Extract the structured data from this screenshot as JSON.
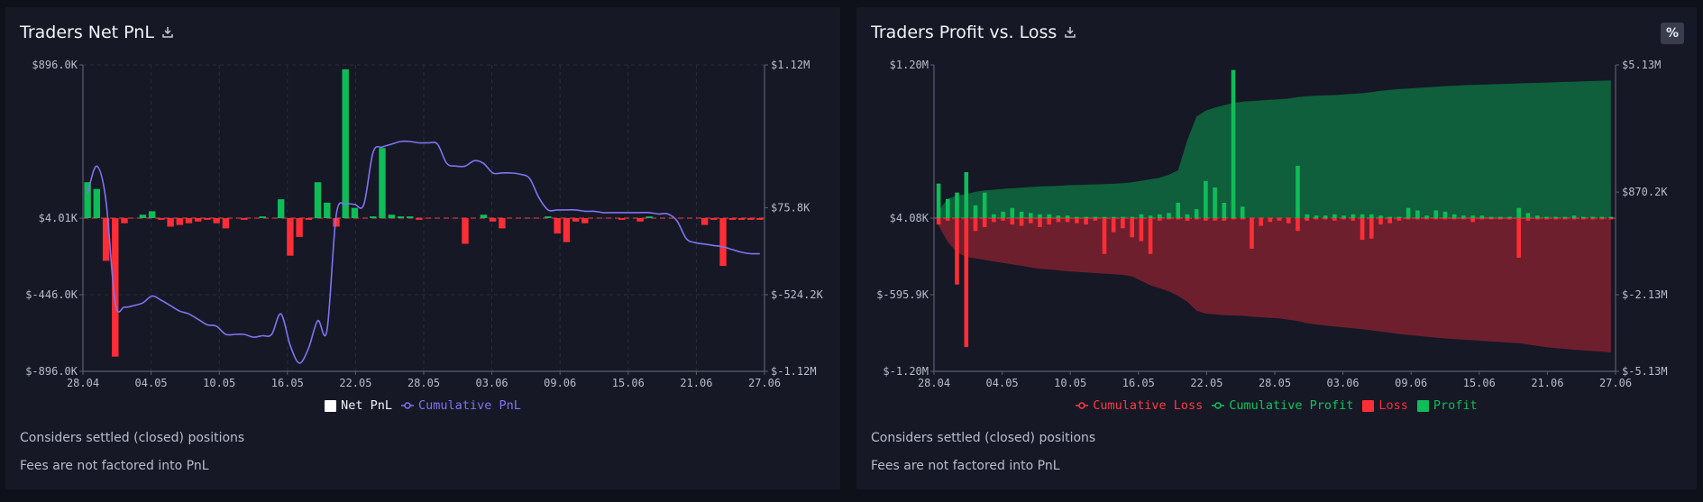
{
  "left": {
    "title": "Traders Net PnL",
    "legend": [
      {
        "label": "Net PnL",
        "color": "#ffffff",
        "kind": "square"
      },
      {
        "label": "Cumulative PnL",
        "color": "#7f74f0",
        "kind": "line"
      }
    ],
    "notes": [
      "Considers settled (closed) positions",
      "Fees are not factored into PnL"
    ]
  },
  "right": {
    "title": "Traders Profit vs. Loss",
    "percent_button": "%",
    "legend": [
      {
        "label": "Cumulative Loss",
        "color": "#ff3b41",
        "kind": "line"
      },
      {
        "label": "Cumulative Profit",
        "color": "#10c45c",
        "kind": "line"
      },
      {
        "label": "Loss",
        "color": "#ff2d36",
        "kind": "square"
      },
      {
        "label": "Profit",
        "color": "#0ebd58",
        "kind": "square"
      }
    ],
    "notes": [
      "Considers settled (closed) positions",
      "Fees are not factored into PnL"
    ]
  },
  "chart_data": [
    {
      "type": "bar",
      "title": "Traders Net PnL",
      "x_ticks": [
        "28.04",
        "04.05",
        "10.05",
        "16.05",
        "22.05",
        "28.05",
        "03.06",
        "09.06",
        "15.06",
        "21.06",
        "27.06"
      ],
      "y_left_ticks": [
        "$896.0K",
        "$4.01K",
        "$-446.0K",
        "$-896.0K"
      ],
      "y_right_ticks": [
        "$1.12M",
        "$75.8K",
        "$-524.2K",
        "$-1.12M"
      ],
      "ylim_left": [
        -896000,
        896000
      ],
      "ylim_right": [
        -1120000,
        1120000
      ],
      "grid": true,
      "legend_position": "bottom",
      "series": [
        {
          "name": "Net PnL",
          "kind": "bar",
          "values": [
            210000,
            170000,
            -250000,
            -810000,
            -30000,
            0,
            20000,
            40000,
            -10000,
            -50000,
            -40000,
            -30000,
            -20000,
            -10000,
            -30000,
            -60000,
            0,
            -10000,
            0,
            10000,
            0,
            110000,
            -220000,
            -110000,
            -10000,
            210000,
            90000,
            -50000,
            870000,
            60000,
            0,
            10000,
            410000,
            20000,
            10000,
            10000,
            -10000,
            0,
            0,
            0,
            0,
            -150000,
            0,
            20000,
            -20000,
            -60000,
            0,
            0,
            0,
            0,
            10000,
            -90000,
            -140000,
            -20000,
            -30000,
            0,
            0,
            0,
            -10000,
            0,
            -20000,
            10000,
            0,
            0,
            0,
            0,
            0,
            -40000,
            -10000,
            -280000,
            -10000,
            -10000,
            -10000,
            -10000
          ],
          "colors": {
            "positive": "#0ebd58",
            "negative": "#ff2d36"
          }
        },
        {
          "name": "Cumulative PnL",
          "kind": "line",
          "color": "#7f74f0",
          "values": [
            180000,
            380000,
            130000,
            -620000,
            -650000,
            -640000,
            -620000,
            -570000,
            -600000,
            -640000,
            -680000,
            -700000,
            -740000,
            -780000,
            -790000,
            -850000,
            -850000,
            -850000,
            -870000,
            -860000,
            -850000,
            -700000,
            -930000,
            -1060000,
            -950000,
            -750000,
            -820000,
            20000,
            100000,
            100000,
            100000,
            480000,
            520000,
            540000,
            560000,
            560000,
            550000,
            550000,
            540000,
            400000,
            380000,
            380000,
            420000,
            400000,
            330000,
            330000,
            330000,
            320000,
            290000,
            150000,
            60000,
            60000,
            60000,
            60000,
            50000,
            50000,
            40000,
            40000,
            40000,
            40000,
            40000,
            40000,
            30000,
            30000,
            -20000,
            -150000,
            -180000,
            -190000,
            -200000,
            -210000,
            -230000,
            -250000,
            -260000,
            -260000
          ]
        }
      ]
    },
    {
      "type": "bar",
      "title": "Traders Profit vs. Loss",
      "x_ticks": [
        "28.04",
        "04.05",
        "10.05",
        "16.05",
        "22.05",
        "28.05",
        "03.06",
        "09.06",
        "15.06",
        "21.06",
        "27.06"
      ],
      "y_left_ticks": [
        "$1.20M",
        "$4.08K",
        "$-595.9K",
        "$-1.20M"
      ],
      "y_right_ticks": [
        "$5.13M",
        "$870.2K",
        "$-2.13M",
        "$-5.13M"
      ],
      "ylim_left": [
        -1200000,
        1200000
      ],
      "ylim_right": [
        -5130000,
        5130000
      ],
      "grid": false,
      "legend_position": "bottom",
      "series": [
        {
          "name": "Cumulative Profit",
          "kind": "area",
          "color": "#0f5e3c",
          "values": [
            250000,
            650000,
            750000,
            800000,
            880000,
            930000,
            950000,
            980000,
            1000000,
            1020000,
            1040000,
            1060000,
            1070000,
            1080000,
            1100000,
            1110000,
            1120000,
            1130000,
            1140000,
            1150000,
            1170000,
            1200000,
            1250000,
            1300000,
            1350000,
            1450000,
            1600000,
            2600000,
            3400000,
            3600000,
            3700000,
            3780000,
            3850000,
            3900000,
            3920000,
            3940000,
            3960000,
            3980000,
            4000000,
            4050000,
            4080000,
            4100000,
            4110000,
            4120000,
            4140000,
            4160000,
            4180000,
            4220000,
            4260000,
            4290000,
            4320000,
            4340000,
            4360000,
            4380000,
            4400000,
            4420000,
            4430000,
            4450000,
            4460000,
            4470000,
            4480000,
            4490000,
            4500000,
            4510000,
            4520000,
            4530000,
            4540000,
            4550000,
            4560000,
            4570000,
            4580000,
            4590000,
            4600000,
            4610000
          ]
        },
        {
          "name": "Cumulative Loss",
          "kind": "area",
          "color": "#6e1f2e",
          "values": [
            -250000,
            -800000,
            -1150000,
            -1300000,
            -1350000,
            -1400000,
            -1450000,
            -1500000,
            -1550000,
            -1600000,
            -1650000,
            -1700000,
            -1720000,
            -1750000,
            -1780000,
            -1800000,
            -1820000,
            -1840000,
            -1860000,
            -1880000,
            -1900000,
            -1950000,
            -2100000,
            -2250000,
            -2350000,
            -2450000,
            -2600000,
            -2800000,
            -3100000,
            -3200000,
            -3220000,
            -3250000,
            -3260000,
            -3270000,
            -3300000,
            -3320000,
            -3340000,
            -3360000,
            -3400000,
            -3450000,
            -3520000,
            -3560000,
            -3600000,
            -3630000,
            -3660000,
            -3690000,
            -3720000,
            -3760000,
            -3800000,
            -3840000,
            -3880000,
            -3910000,
            -3940000,
            -3970000,
            -4000000,
            -4030000,
            -4050000,
            -4070000,
            -4090000,
            -4110000,
            -4130000,
            -4150000,
            -4170000,
            -4190000,
            -4230000,
            -4280000,
            -4320000,
            -4350000,
            -4380000,
            -4410000,
            -4430000,
            -4450000,
            -4470000,
            -4500000
          ]
        },
        {
          "name": "Profit",
          "kind": "bar",
          "color": "#0ebd58",
          "values": [
            270000,
            150000,
            200000,
            360000,
            100000,
            200000,
            30000,
            50000,
            80000,
            50000,
            40000,
            30000,
            30000,
            20000,
            20000,
            10000,
            10000,
            10000,
            10000,
            10000,
            10000,
            10000,
            30000,
            20000,
            30000,
            40000,
            120000,
            30000,
            70000,
            290000,
            240000,
            120000,
            1160000,
            90000,
            0,
            0,
            0,
            0,
            0,
            410000,
            30000,
            20000,
            20000,
            30000,
            20000,
            30000,
            30000,
            30000,
            20000,
            10000,
            10000,
            80000,
            60000,
            20000,
            60000,
            50000,
            30000,
            20000,
            20000,
            20000,
            10000,
            10000,
            10000,
            80000,
            40000,
            20000,
            10000,
            10000,
            10000,
            20000,
            10000,
            10000,
            10000,
            10000
          ]
        },
        {
          "name": "Loss",
          "kind": "bar",
          "color": "#ff2d36",
          "values": [
            -50000,
            -20000,
            -520000,
            -1010000,
            -100000,
            -70000,
            -30000,
            -20000,
            -50000,
            -60000,
            -40000,
            -70000,
            -50000,
            -30000,
            -30000,
            -40000,
            -50000,
            -20000,
            -280000,
            -110000,
            -80000,
            -150000,
            -180000,
            -280000,
            -20000,
            -10000,
            -10000,
            -20000,
            -10000,
            -20000,
            -20000,
            -20000,
            -10000,
            -10000,
            -240000,
            -60000,
            -30000,
            -20000,
            -40000,
            -100000,
            -20000,
            -10000,
            -10000,
            -20000,
            -10000,
            -20000,
            -170000,
            -160000,
            -50000,
            -40000,
            -20000,
            -10000,
            -10000,
            -10000,
            -10000,
            -10000,
            -10000,
            -10000,
            -30000,
            -10000,
            -10000,
            -10000,
            -10000,
            -310000,
            -20000,
            -10000,
            -10000,
            -10000,
            -10000,
            -10000,
            -10000,
            -10000,
            -10000,
            -10000
          ]
        }
      ]
    }
  ]
}
